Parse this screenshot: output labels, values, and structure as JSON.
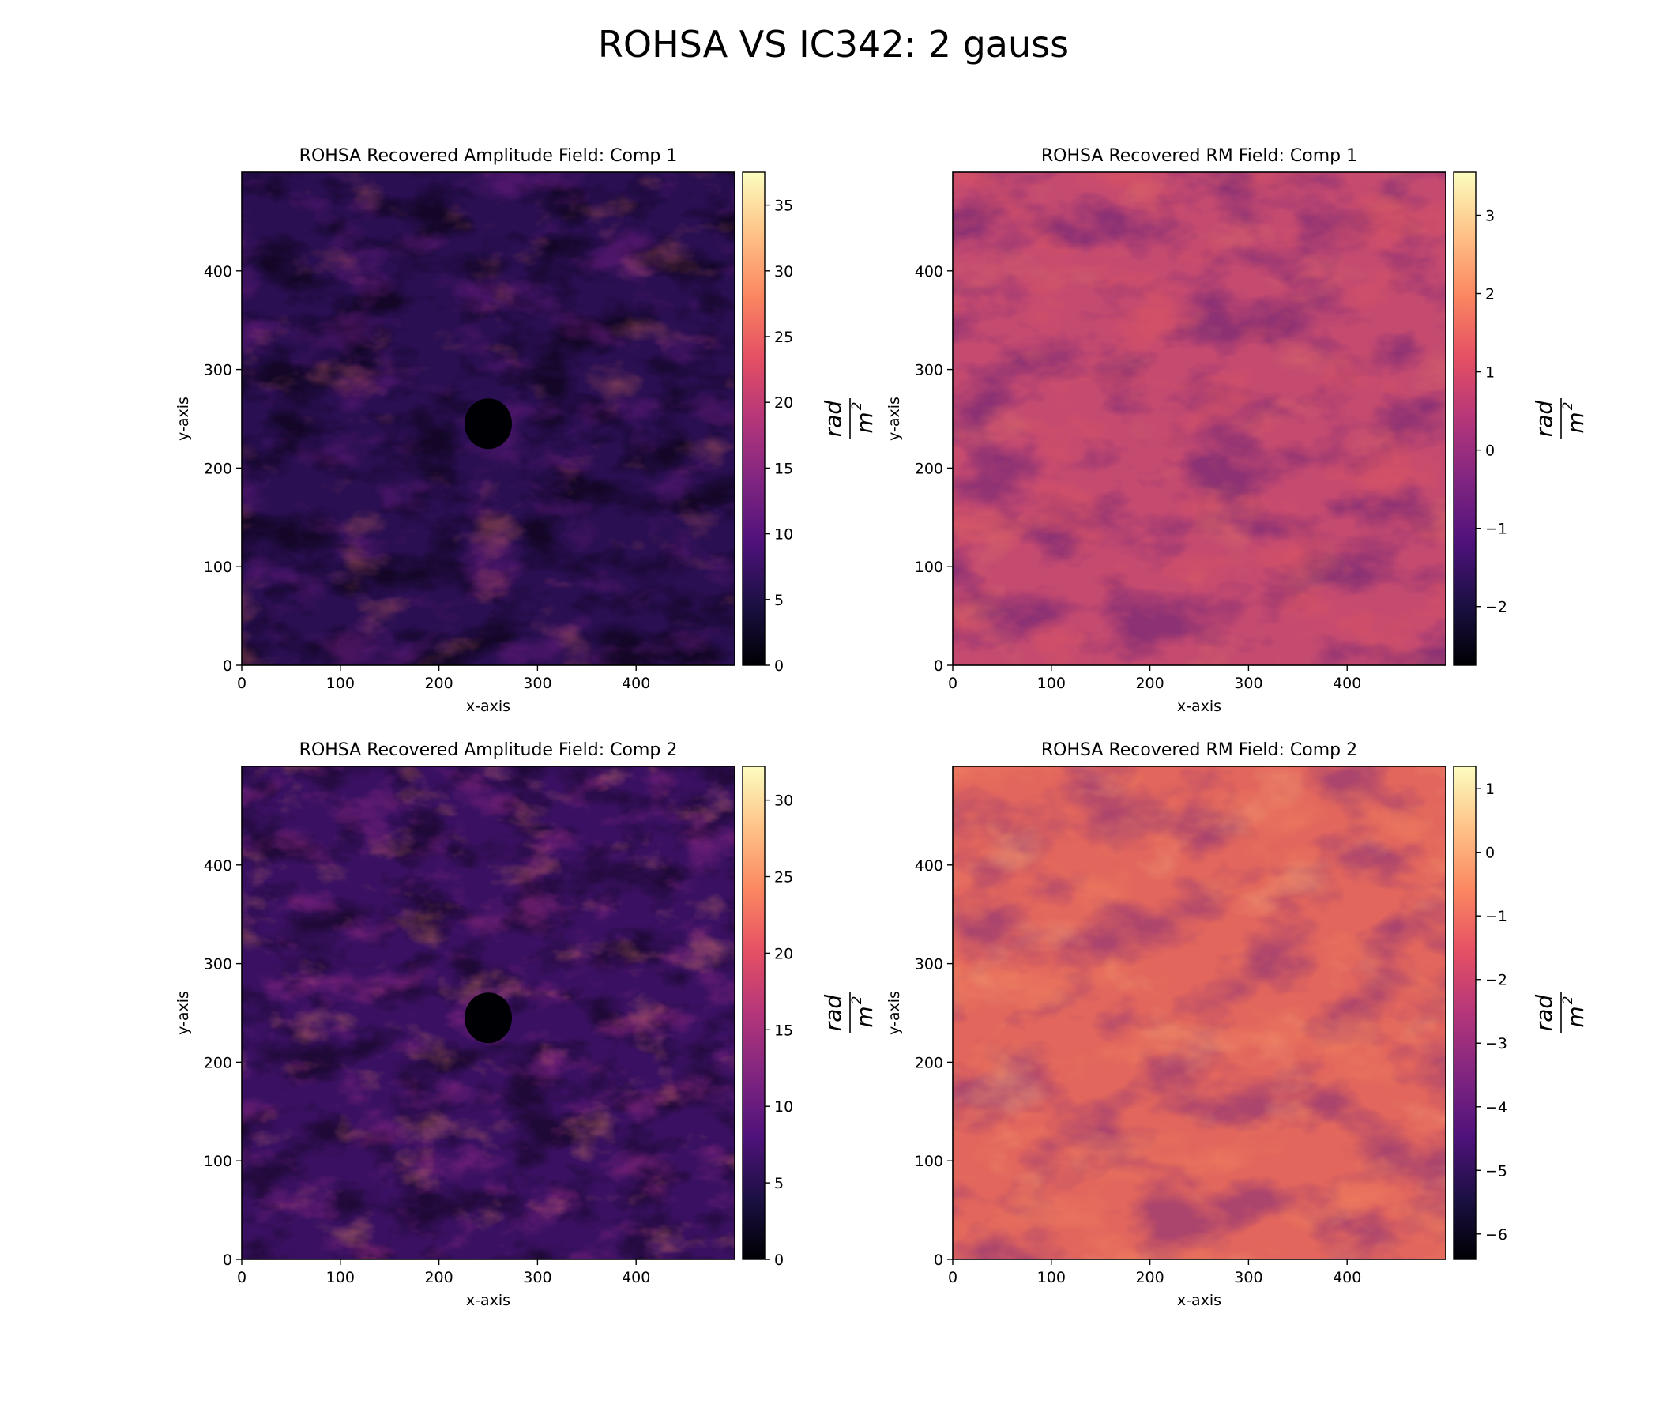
{
  "figure": {
    "suptitle": "ROHSA VS IC342: 2 gauss",
    "colormap": "magma",
    "colormap_stops": [
      "#000004",
      "#1c1044",
      "#4f127b",
      "#812581",
      "#b5367a",
      "#e55064",
      "#fb8761",
      "#fec287",
      "#fcfdbf"
    ]
  },
  "chart_data": [
    {
      "type": "heatmap",
      "title": "ROHSA Recovered Amplitude Field: Comp 1",
      "xlabel": "x-axis",
      "ylabel": "y-axis",
      "xlim": [
        0,
        500
      ],
      "ylim": [
        0,
        500
      ],
      "xticks": [
        0,
        100,
        200,
        300,
        400
      ],
      "yticks": [
        0,
        100,
        200,
        300,
        400
      ],
      "colorbar": {
        "label_num": "rad",
        "label_den": "m",
        "label_exp": "2",
        "range": [
          0,
          37.5
        ],
        "ticks": [
          0,
          5,
          10,
          15,
          20,
          25,
          30,
          35
        ],
        "tick_labels": [
          "0",
          "5",
          "10",
          "15",
          "20",
          "25",
          "30",
          "35"
        ]
      },
      "grid": false
    },
    {
      "type": "heatmap",
      "title": "ROHSA Recovered RM Field: Comp 1",
      "xlabel": "x-axis",
      "ylabel": "y-axis",
      "xlim": [
        0,
        500
      ],
      "ylim": [
        0,
        500
      ],
      "xticks": [
        0,
        100,
        200,
        300,
        400
      ],
      "yticks": [
        0,
        100,
        200,
        300,
        400
      ],
      "colorbar": {
        "label_num": "rad",
        "label_den": "m",
        "label_exp": "2",
        "range": [
          -2.75,
          3.55
        ],
        "ticks": [
          -2,
          -1,
          0,
          1,
          2,
          3
        ],
        "tick_labels": [
          "−2",
          "−1",
          "0",
          "1",
          "2",
          "3"
        ]
      },
      "grid": false
    },
    {
      "type": "heatmap",
      "title": "ROHSA Recovered Amplitude Field: Comp 2",
      "xlabel": "x-axis",
      "ylabel": "y-axis",
      "xlim": [
        0,
        500
      ],
      "ylim": [
        0,
        500
      ],
      "xticks": [
        0,
        100,
        200,
        300,
        400
      ],
      "yticks": [
        0,
        100,
        200,
        300,
        400
      ],
      "colorbar": {
        "label_num": "rad",
        "label_den": "m",
        "label_exp": "2",
        "range": [
          0,
          32.2
        ],
        "ticks": [
          0,
          5,
          10,
          15,
          20,
          25,
          30
        ],
        "tick_labels": [
          "0",
          "5",
          "10",
          "15",
          "20",
          "25",
          "30"
        ]
      },
      "grid": false
    },
    {
      "type": "heatmap",
      "title": "ROHSA Recovered RM Field: Comp 2",
      "xlabel": "x-axis",
      "ylabel": "y-axis",
      "xlim": [
        0,
        500
      ],
      "ylim": [
        0,
        500
      ],
      "xticks": [
        0,
        100,
        200,
        300,
        400
      ],
      "yticks": [
        0,
        100,
        200,
        300,
        400
      ],
      "colorbar": {
        "label_num": "rad",
        "label_den": "m",
        "label_exp": "2",
        "range": [
          -6.4,
          1.35
        ],
        "ticks": [
          -6,
          -5,
          -4,
          -3,
          -2,
          -1,
          0,
          1
        ],
        "tick_labels": [
          "−6",
          "−5",
          "−4",
          "−3",
          "−2",
          "−1",
          "0",
          "1"
        ]
      },
      "grid": false
    }
  ]
}
